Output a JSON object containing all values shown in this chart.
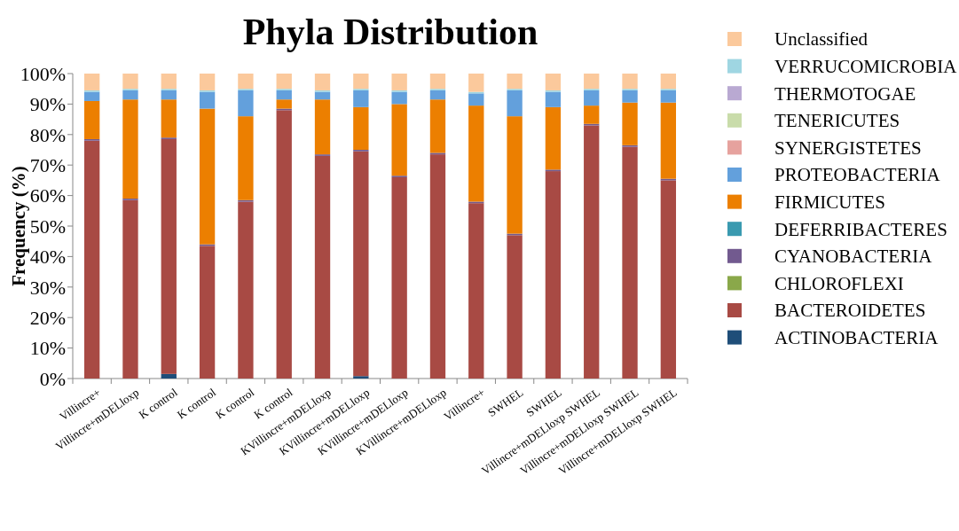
{
  "chart_data": {
    "type": "bar",
    "stacked": true,
    "title": "Phyla Distribution",
    "ylabel": "Frequency (%)",
    "legend": "right",
    "categories": [
      "Villincre+",
      "Villincre+mDELloxp",
      "K control",
      "K control",
      "K control",
      "K control",
      "KVillincre+mDELloxp",
      "KVillincre+mDELloxp",
      "KVillincre+mDELloxp",
      "KVillincre+mDELloxp",
      "Villincre+",
      "SWHEL",
      "SWHEL",
      "Villincre+mDELloxp SWHEL",
      "Villincre+mDELloxp SWHEL",
      "Villincre+mDELloxp SWHEL"
    ],
    "ylim": [
      0,
      100
    ],
    "yticks": [
      {
        "value": 0,
        "label": "0%"
      },
      {
        "value": 10,
        "label": "10%"
      },
      {
        "value": 20,
        "label": "20%"
      },
      {
        "value": 30,
        "label": "30%"
      },
      {
        "value": 40,
        "label": "40%"
      },
      {
        "value": 50,
        "label": "50%"
      },
      {
        "value": 60,
        "label": "60%"
      },
      {
        "value": 70,
        "label": "70%"
      },
      {
        "value": 80,
        "label": "80%"
      },
      {
        "value": 90,
        "label": "90%"
      },
      {
        "value": 100,
        "label": "100%"
      }
    ],
    "series": [
      {
        "name": "ACTINOBACTERIA",
        "color": "#1f4e79",
        "values": [
          0,
          0,
          1.5,
          0,
          0,
          0,
          0,
          0.8,
          0,
          0,
          0,
          0,
          0,
          0,
          0,
          0
        ]
      },
      {
        "name": "BACTEROIDETES",
        "color": "#a84a44",
        "values": [
          78,
          58.5,
          77,
          43.5,
          58,
          88,
          73,
          73.7,
          66,
          73.5,
          57.5,
          47,
          68,
          83,
          76,
          65
        ]
      },
      {
        "name": "CHLOROFLEXI",
        "color": "#8aa84a",
        "values": [
          0,
          0,
          0,
          0,
          0,
          0,
          0,
          0,
          0,
          0,
          0,
          0,
          0,
          0,
          0,
          0
        ]
      },
      {
        "name": "CYANOBACTERIA",
        "color": "#725a8f",
        "values": [
          0.5,
          0.5,
          0.5,
          0.5,
          0.5,
          0.5,
          0.5,
          0.5,
          0.5,
          0.5,
          0.5,
          0.5,
          0.5,
          0.5,
          0.5,
          0.5
        ]
      },
      {
        "name": "DEFERRIBACTERES",
        "color": "#3a9ab0",
        "values": [
          0,
          0,
          0,
          0,
          0,
          0,
          0,
          0,
          0,
          0,
          0,
          0,
          0,
          0,
          0,
          0
        ]
      },
      {
        "name": "FIRMICUTES",
        "color": "#ec7f00",
        "values": [
          12.5,
          32.5,
          12.5,
          44.5,
          27.5,
          3,
          18,
          14,
          23.5,
          17.5,
          31.5,
          38.5,
          20.5,
          6,
          14,
          25
        ]
      },
      {
        "name": "PROTEOBACTERIA",
        "color": "#63a0dc",
        "values": [
          3,
          3,
          3,
          5.5,
          8.5,
          3,
          2.5,
          5.5,
          4,
          3,
          4,
          8.5,
          5,
          5,
          4,
          4
        ]
      },
      {
        "name": "SYNERGISTETES",
        "color": "#e6a29e",
        "values": [
          0,
          0,
          0,
          0,
          0,
          0,
          0,
          0,
          0,
          0,
          0,
          0,
          0,
          0,
          0,
          0
        ]
      },
      {
        "name": "TENERICUTES",
        "color": "#c9dcaa",
        "values": [
          0,
          0,
          0,
          0,
          0,
          0,
          0,
          0,
          0,
          0,
          0,
          0,
          0,
          0,
          0,
          0
        ]
      },
      {
        "name": "THERMOTOGAE",
        "color": "#b9a9d2",
        "values": [
          0,
          0,
          0,
          0,
          0,
          0,
          0,
          0,
          0,
          0,
          0,
          0,
          0,
          0,
          0,
          0
        ]
      },
      {
        "name": "VERRUCOMICROBIA",
        "color": "#9fd6e2",
        "values": [
          0.5,
          0.5,
          0.5,
          0.5,
          0.5,
          0.5,
          0.5,
          0.5,
          0.5,
          0.5,
          0.5,
          0.5,
          0.5,
          0.5,
          0.5,
          0.5
        ]
      },
      {
        "name": "Unclassified",
        "color": "#fbc99c",
        "values": [
          5.5,
          5,
          5,
          5.5,
          5,
          5,
          5.5,
          5,
          5.5,
          5,
          6,
          5,
          5.5,
          5,
          5,
          5
        ]
      }
    ]
  }
}
